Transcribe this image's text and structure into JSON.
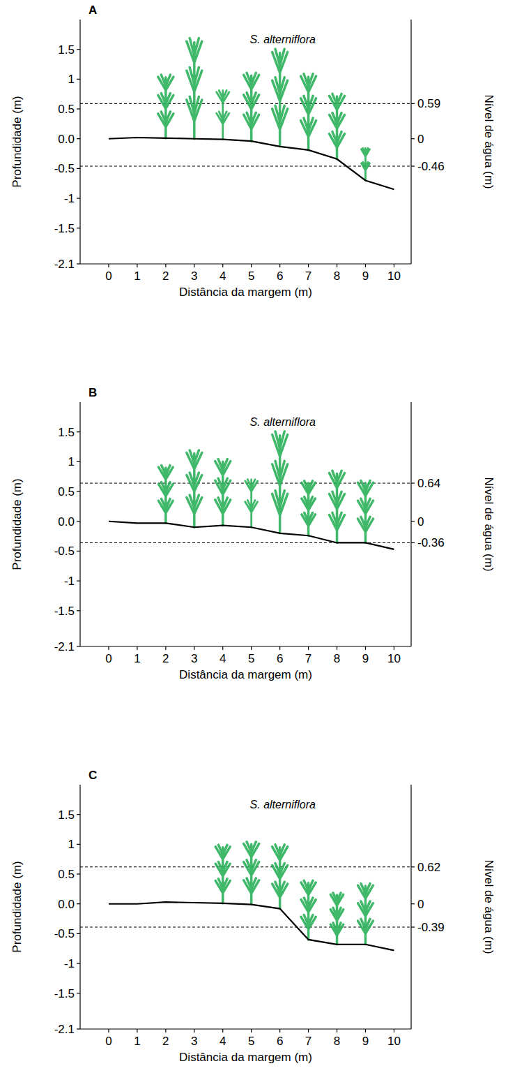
{
  "chart_data": [
    {
      "type": "line",
      "title": "A",
      "x": [
        0,
        1,
        2,
        3,
        4,
        5,
        6,
        7,
        8,
        9,
        10
      ],
      "values": [
        0,
        0.02,
        0.01,
        0,
        -0.01,
        -0.04,
        -0.13,
        -0.19,
        -0.34,
        -0.7,
        -0.85
      ],
      "color": "#000000",
      "xlabel": "Distância da margem (m)",
      "ylabel": "Profundidade (m)",
      "y2label": "Nível de água (m)",
      "xlim": [
        -1,
        10.6
      ],
      "xticks": [
        0,
        1,
        2,
        3,
        4,
        5,
        6,
        7,
        8,
        9,
        10
      ],
      "ylim": [
        -2.1,
        2.0
      ],
      "yticks": [
        1.5,
        1,
        0.5,
        {
          "value": 0,
          "label": "0.0"
        },
        -0.5,
        -1,
        -1.5,
        -2.1
      ],
      "y2lim": [
        -2.1,
        2.0
      ],
      "y2ticks": [
        0.59,
        0,
        -0.46
      ],
      "water_levels": {
        "values": [
          0.59,
          -0.46
        ],
        "line_style": "dashed"
      },
      "plants": {
        "label": "S. alterniflora",
        "color": "#2bb05a",
        "x": [
          2,
          3,
          4,
          5,
          6,
          7,
          8,
          9
        ],
        "tops": [
          1.03,
          1.62,
          0.81,
          1.06,
          1.44,
          1.04,
          0.71,
          -0.16
        ]
      }
    },
    {
      "type": "line",
      "title": "B",
      "x": [
        0,
        1,
        2,
        3,
        4,
        5,
        6,
        7,
        8,
        9,
        10
      ],
      "values": [
        0,
        -0.03,
        -0.03,
        -0.1,
        -0.07,
        -0.1,
        -0.2,
        -0.24,
        -0.36,
        -0.36,
        -0.47
      ],
      "color": "#000000",
      "xlabel": "Distância da margem (m)",
      "ylabel": "Profundidade (m)",
      "y2label": "Nível de água (m)",
      "xlim": [
        -1,
        10.6
      ],
      "xticks": [
        0,
        1,
        2,
        3,
        4,
        5,
        6,
        7,
        8,
        9,
        10
      ],
      "ylim": [
        -2.1,
        2.0
      ],
      "yticks": [
        1.5,
        1,
        0.5,
        {
          "value": 0,
          "label": "0.0"
        },
        -0.5,
        -1,
        -1.5,
        -2.1
      ],
      "y2lim": [
        -2.1,
        2.0
      ],
      "y2ticks": [
        0.64,
        0,
        -0.36
      ],
      "water_levels": {
        "values": [
          0.64,
          -0.36
        ],
        "line_style": "dashed"
      },
      "plants": {
        "label": "S. alterniflora",
        "color": "#2bb05a",
        "x": [
          2,
          3,
          4,
          5,
          6,
          7,
          8,
          9
        ],
        "tops": [
          0.9,
          1.14,
          1.0,
          0.7,
          1.44,
          0.64,
          0.8,
          0.64
        ]
      }
    },
    {
      "type": "line",
      "title": "C",
      "x": [
        0,
        1,
        2,
        3,
        4,
        5,
        6,
        7,
        8,
        9,
        10
      ],
      "values": [
        0,
        0,
        0.03,
        0.02,
        0.01,
        -0.01,
        -0.08,
        -0.6,
        -0.68,
        -0.68,
        -0.78
      ],
      "color": "#000000",
      "xlabel": "Distância da margem (m)",
      "ylabel": "Profundidade (m)",
      "y2label": "Nível de água (m)",
      "xlim": [
        -1,
        10.6
      ],
      "xticks": [
        0,
        1,
        2,
        3,
        4,
        5,
        6,
        7,
        8,
        9,
        10
      ],
      "ylim": [
        -2.1,
        2.0
      ],
      "yticks": [
        1.5,
        1,
        0.5,
        {
          "value": 0,
          "label": "0.0"
        },
        -0.5,
        -1,
        -1.5,
        -2.1
      ],
      "y2lim": [
        -2.1,
        2.0
      ],
      "y2ticks": [
        0.62,
        0,
        -0.39
      ],
      "water_levels": {
        "values": [
          0.62,
          -0.39
        ],
        "line_style": "dashed"
      },
      "plants": {
        "label": "S. alterniflora",
        "color": "#2bb05a",
        "x": [
          4,
          5,
          6,
          7,
          8,
          9
        ],
        "tops": [
          0.95,
          1.0,
          0.95,
          0.35,
          0.15,
          0.3
        ]
      }
    }
  ]
}
